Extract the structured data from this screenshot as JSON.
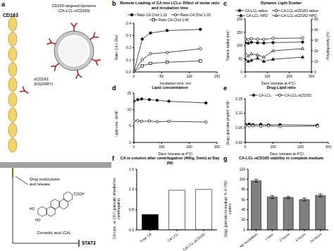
{
  "diagram": {
    "panel_label": "a",
    "receptor": "CD163",
    "liposome_title": "CD163-targeted liposome",
    "liposome_subtitle": "(CA-LCL-αCD163)",
    "antibody": "αCD163",
    "antibody_clone": "(KN2/NRY)",
    "process": [
      "Drug endocytosis",
      "and release"
    ],
    "drug": "Corosolic acid (CA)",
    "structure_labels": [
      "COOH",
      "HO",
      "HO"
    ],
    "target": "STAT3"
  },
  "chart_data": [
    {
      "panel_label": "b",
      "type": "line",
      "title": "Remote Loading of CA into LCLs: Effect of molar ratio and incubation time",
      "x_label": "Incubation time: min",
      "y_label": "Ratio: CA / Chol",
      "x": [
        0,
        15,
        30,
        60,
        120
      ],
      "xlim": [
        0,
        150
      ],
      "xticks": [
        0,
        50,
        100,
        150
      ],
      "ylim": [
        0,
        0.4
      ],
      "yticks": [
        {
          "value": 0,
          "label": "0.0"
        },
        0.1,
        0.2,
        0.3,
        0.4
      ],
      "legend": "top",
      "series": [
        {
          "name": "Ratio CA:Chol 1:10",
          "color": "#000000",
          "marker": "circle",
          "values": [
            0,
            0.27,
            0.32,
            0.34,
            0.35
          ]
        },
        {
          "name": "Ratio CA:Chol 1:20",
          "color": "#000000",
          "marker": "open_circle",
          "values": [
            0,
            0.1,
            0.15,
            0.16,
            0.19
          ]
        },
        {
          "name": "Ratio CA:Chol 1:40",
          "color": "#000000",
          "marker": "open_square",
          "values": [
            0,
            0.05,
            0.07,
            0.08,
            0.09
          ]
        }
      ]
    },
    {
      "panel_label": "c",
      "type": "line",
      "title": "Dynamic Light Scatter",
      "x_label": "Days (storage at 4°C)",
      "y_label": "Particle radius (nm)",
      "y2_label": "Polydispersity (%)",
      "x": [
        0,
        14,
        28,
        56,
        84,
        126,
        260
      ],
      "xlim": [
        0,
        300
      ],
      "xticks": [
        0,
        100,
        200,
        300
      ],
      "ylim": [
        0,
        200
      ],
      "yticks": [
        0,
        50,
        100,
        150,
        200
      ],
      "y2lim": [
        0,
        50
      ],
      "y2ticks": [
        0,
        10,
        20,
        30,
        40,
        50
      ],
      "legend": "top",
      "series": [
        {
          "name": "CA-LCL radius",
          "color": "#000000",
          "marker": "circle",
          "values": [
            110,
            108,
            112,
            110,
            109,
            111,
            113
          ]
        },
        {
          "name": "CA-LCL-αCD163 radius",
          "color": "#000000",
          "marker": "open_circle",
          "values": [
            125,
            122,
            126,
            124,
            123,
            127,
            128
          ]
        },
        {
          "name": "CA-LCL %PD",
          "color": "#000000",
          "marker": "triangle",
          "axis": "y2",
          "values": [
            12,
            10,
            11,
            13,
            10,
            12,
            14
          ]
        },
        {
          "name": "CA-LCL-αCD163 %PD",
          "color": "#000000",
          "marker": "open_triangle",
          "axis": "y2",
          "values": [
            18,
            15,
            17,
            16,
            14,
            20,
            22
          ]
        }
      ]
    },
    {
      "panel_label": "d",
      "type": "line",
      "title": "Lipid concentration",
      "x_label": "Days (storage at 4°C)",
      "y_label": "Lipid conc. (mM)",
      "x": [
        0,
        14,
        28,
        56,
        84,
        126,
        260
      ],
      "xlim": [
        0,
        300
      ],
      "xticks": [
        0,
        100,
        200,
        300
      ],
      "ylim": [
        0,
        15
      ],
      "yticks": [
        0,
        5,
        10,
        15
      ],
      "series": [
        {
          "color": "#000000",
          "marker": "circle",
          "values": [
            12.5,
            13,
            13.2,
            13,
            12.8,
            12.5,
            12
          ]
        },
        {
          "color": "#000000",
          "marker": "open_circle",
          "values": [
            6.5,
            6.6,
            6.4,
            6.5,
            6.3,
            6.4,
            6.2
          ]
        }
      ]
    },
    {
      "panel_label": "e",
      "type": "line",
      "title": "Drug:Lipid ratio",
      "x_label": "Days (storage at 4°C)",
      "y_label": "Drug:Lipid ratio (mg/ml, mM)",
      "x": [
        0,
        14,
        28,
        56,
        84,
        126,
        260
      ],
      "xlim": [
        0,
        300
      ],
      "xticks": [
        0,
        100,
        200,
        300
      ],
      "ylim": [
        0,
        0.15
      ],
      "yticks": [
        {
          "value": 0,
          "label": "0.00"
        },
        0.05,
        {
          "value": 0.1,
          "label": "0.10"
        },
        0.15
      ],
      "legend": "top",
      "series": [
        {
          "name": "CA-LCL",
          "color": "#000000",
          "marker": "circle",
          "values": [
            0.062,
            0.063,
            0.061,
            0.062,
            0.06,
            0.061,
            0.059
          ]
        },
        {
          "name": "CA-LCL-αCD163",
          "color": "#000000",
          "marker": "open_circle",
          "values": [
            0.058,
            0.057,
            0.058,
            0.056,
            0.057,
            0.055,
            0.056
          ]
        }
      ]
    },
    {
      "panel_label": "f",
      "type": "bar",
      "title": "CA in solution after centrifugation (400g; 5min) at Day 260",
      "y_label": "CA conc. or CA / Lipid-ratio after/before centrifugation",
      "categories": [
        "Free CA",
        "CA-LCL",
        "CA-LCL-αCD163"
      ],
      "values": [
        0.38,
        0.98,
        1.0
      ],
      "colors": [
        "#000000",
        "#ffffff",
        "#ffffff"
      ],
      "ylim": [
        0,
        1.5
      ],
      "yticks": [
        {
          "value": 0,
          "label": "0.0"
        },
        0.5,
        {
          "value": 1,
          "label": "1.0"
        },
        1.5
      ]
    },
    {
      "panel_label": "g",
      "type": "bar",
      "title": "CA-LCL-αCD163 stability in complete medium",
      "y_label": "Drug:Lipid ratio in medium % of PBS control",
      "categories": [
        "No incubation",
        "1 hour",
        "2 hours",
        "4 hours",
        "24 hours"
      ],
      "values": [
        97,
        65,
        64,
        60,
        68
      ],
      "errors": [
        3,
        3,
        2,
        3,
        3
      ],
      "color": "#808080",
      "ylim": [
        0,
        120
      ],
      "yticks": [
        0,
        20,
        40,
        60,
        80,
        100,
        120
      ]
    }
  ]
}
